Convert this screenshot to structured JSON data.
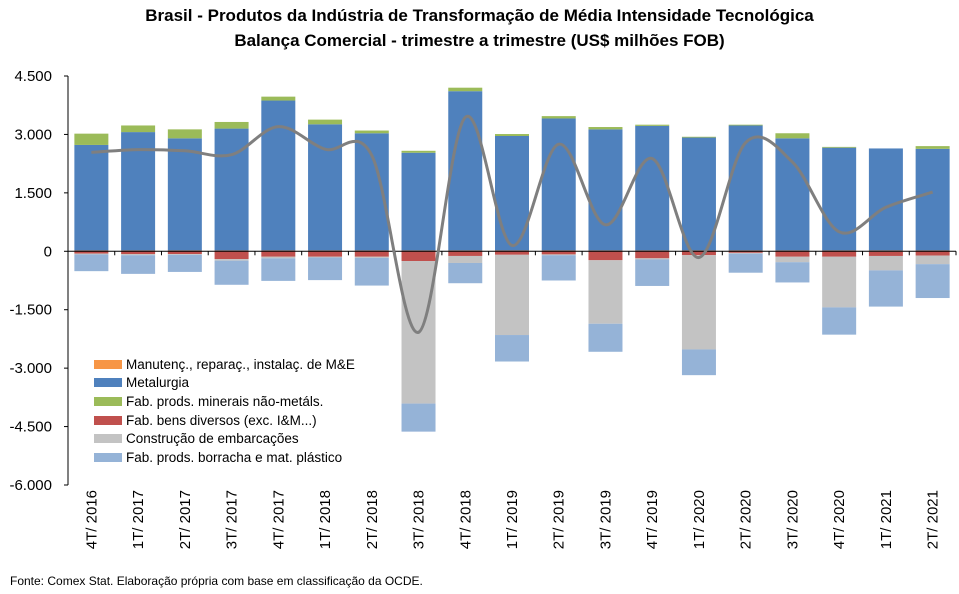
{
  "title_line1": "Brasil - Produtos da Indústria de Transformação de Média Intensidade Tecnológica",
  "title_line2": "Balança Comercial - trimestre a trimestre (US$ milhões FOB)",
  "source": "Fonte: Comex Stat. Elaboração própria com base em classificação da OCDE.",
  "chart_data": {
    "type": "bar",
    "stacked": true,
    "ylim": [
      -6000,
      4500
    ],
    "ytick_values": [
      4500,
      3000,
      1500,
      0,
      -1500,
      -3000,
      -4500,
      -6000
    ],
    "ytick_labels": [
      "4.500",
      "3.000",
      "1.500",
      "0",
      "-1.500",
      "-3.000",
      "-4.500",
      "-6.000"
    ],
    "grid": false,
    "legend_position": "left",
    "categories": [
      "4T/ 2016",
      "1T/ 2017",
      "2T/ 2017",
      "3T/ 2017",
      "4T/ 2017",
      "1T/ 2018",
      "2T/ 2018",
      "3T/ 2018",
      "4T/ 2018",
      "1T/ 2019",
      "2T/ 2019",
      "3T/ 2019",
      "4T/ 2019",
      "1T/ 2020",
      "2T/ 2020",
      "3T/ 2020",
      "4T/ 2020",
      "1T/ 2021",
      "2T/ 2021"
    ],
    "series": [
      {
        "name": "Manutenç., reparaç., instalaç. de M&E",
        "color": "#f79646",
        "values": [
          20,
          20,
          20,
          20,
          20,
          20,
          20,
          20,
          20,
          20,
          20,
          20,
          20,
          20,
          20,
          20,
          20,
          20,
          20
        ]
      },
      {
        "name": "Metalurgia",
        "color": "#4f81bd",
        "values": [
          2710,
          3040,
          2880,
          3130,
          3850,
          3240,
          3010,
          2510,
          4090,
          2940,
          3390,
          3110,
          3200,
          2900,
          3210,
          2880,
          2640,
          2620,
          2610
        ]
      },
      {
        "name": "Fab. prods. minerais não-metáls.",
        "color": "#9bbb59",
        "values": [
          290,
          170,
          230,
          170,
          100,
          120,
          70,
          50,
          90,
          50,
          60,
          60,
          30,
          20,
          20,
          130,
          20,
          -10,
          70
        ]
      },
      {
        "name": "Fab. bens diversos (exc. I&M...)",
        "color": "#c0504d",
        "values": [
          -60,
          -70,
          -70,
          -200,
          -140,
          -140,
          -140,
          -250,
          -120,
          -90,
          -80,
          -230,
          -180,
          -100,
          -40,
          -140,
          -140,
          -110,
          -110
        ]
      },
      {
        "name": "Construção de embarcações",
        "color": "#c3c3c3",
        "values": [
          -20,
          -30,
          -20,
          -40,
          -40,
          -20,
          -30,
          -3660,
          -180,
          -2060,
          -20,
          -1630,
          -30,
          -2420,
          -20,
          -140,
          -1300,
          -370,
          -220
        ]
      },
      {
        "name": "Fab. prods. borracha e mat. plástico",
        "color": "#95b3d7",
        "values": [
          -430,
          -480,
          -440,
          -620,
          -580,
          -580,
          -710,
          -720,
          -520,
          -680,
          -650,
          -720,
          -680,
          -660,
          -490,
          -520,
          -700,
          -930,
          -870
        ]
      }
    ],
    "line": {
      "name": "",
      "color": "#7f7f7f",
      "values": [
        2540,
        2610,
        2580,
        2480,
        3200,
        2620,
        2460,
        -2080,
        3440,
        150,
        2750,
        680,
        2380,
        -160,
        2790,
        2290,
        500,
        1130,
        1520
      ]
    }
  }
}
